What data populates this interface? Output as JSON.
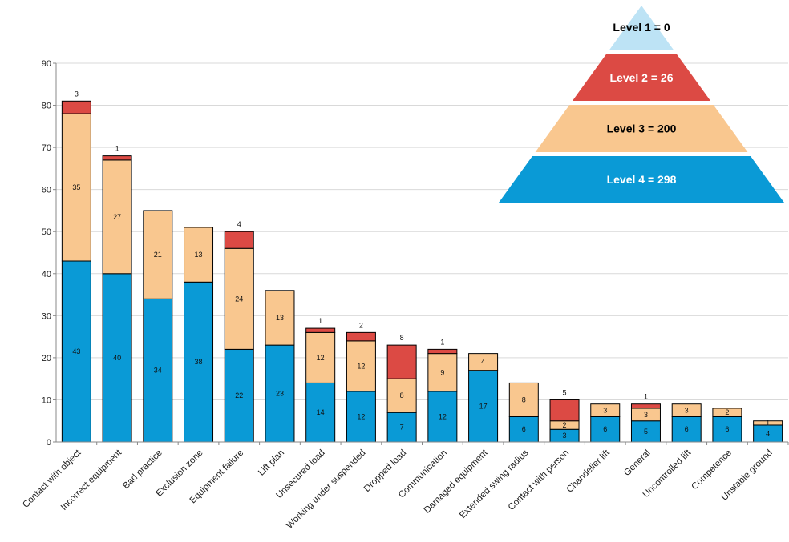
{
  "chart_data": {
    "type": "bar",
    "stacked": true,
    "categories": [
      "Contact with object",
      "Incorrect equipment",
      "Bad practice",
      "Exclusion zone",
      "Equipment failure",
      "Lift plan",
      "Unsecured load",
      "Working under suspended",
      "Dropped load",
      "Communication",
      "Damaged equipment",
      "Extended swing radius",
      "Contact with person",
      "Chandelier lift",
      "General",
      "Uncontrolled lift",
      "Competence",
      "Unstable ground"
    ],
    "series": [
      {
        "color": "#0a9ad6",
        "values": [
          43,
          40,
          34,
          38,
          22,
          23,
          14,
          12,
          7,
          12,
          17,
          6,
          3,
          6,
          5,
          6,
          6,
          4
        ]
      },
      {
        "color": "#f9c78f",
        "values": [
          35,
          27,
          21,
          13,
          24,
          13,
          12,
          12,
          8,
          9,
          4,
          8,
          2,
          3,
          3,
          3,
          2,
          1
        ]
      },
      {
        "color": "#dc4a44",
        "values": [
          3,
          1,
          0,
          0,
          4,
          0,
          1,
          2,
          8,
          1,
          0,
          0,
          5,
          0,
          1,
          0,
          0,
          0
        ]
      }
    ],
    "ylim": [
      0,
      90
    ],
    "yticks": [
      0,
      10,
      20,
      30,
      40,
      50,
      60,
      70,
      80,
      90
    ],
    "grid": true
  },
  "pyramid": {
    "levels": [
      {
        "label": "Level 1 = 0",
        "color": "#bde3f5",
        "text_color": "#000000"
      },
      {
        "label": "Level 2 = 26",
        "color": "#dc4a44",
        "text_color": "#ffffff"
      },
      {
        "label": "Level 3 = 200",
        "color": "#f9c78f",
        "text_color": "#000000"
      },
      {
        "label": "Level 4 = 298",
        "color": "#0a9ad6",
        "text_color": "#ffffff"
      }
    ]
  }
}
